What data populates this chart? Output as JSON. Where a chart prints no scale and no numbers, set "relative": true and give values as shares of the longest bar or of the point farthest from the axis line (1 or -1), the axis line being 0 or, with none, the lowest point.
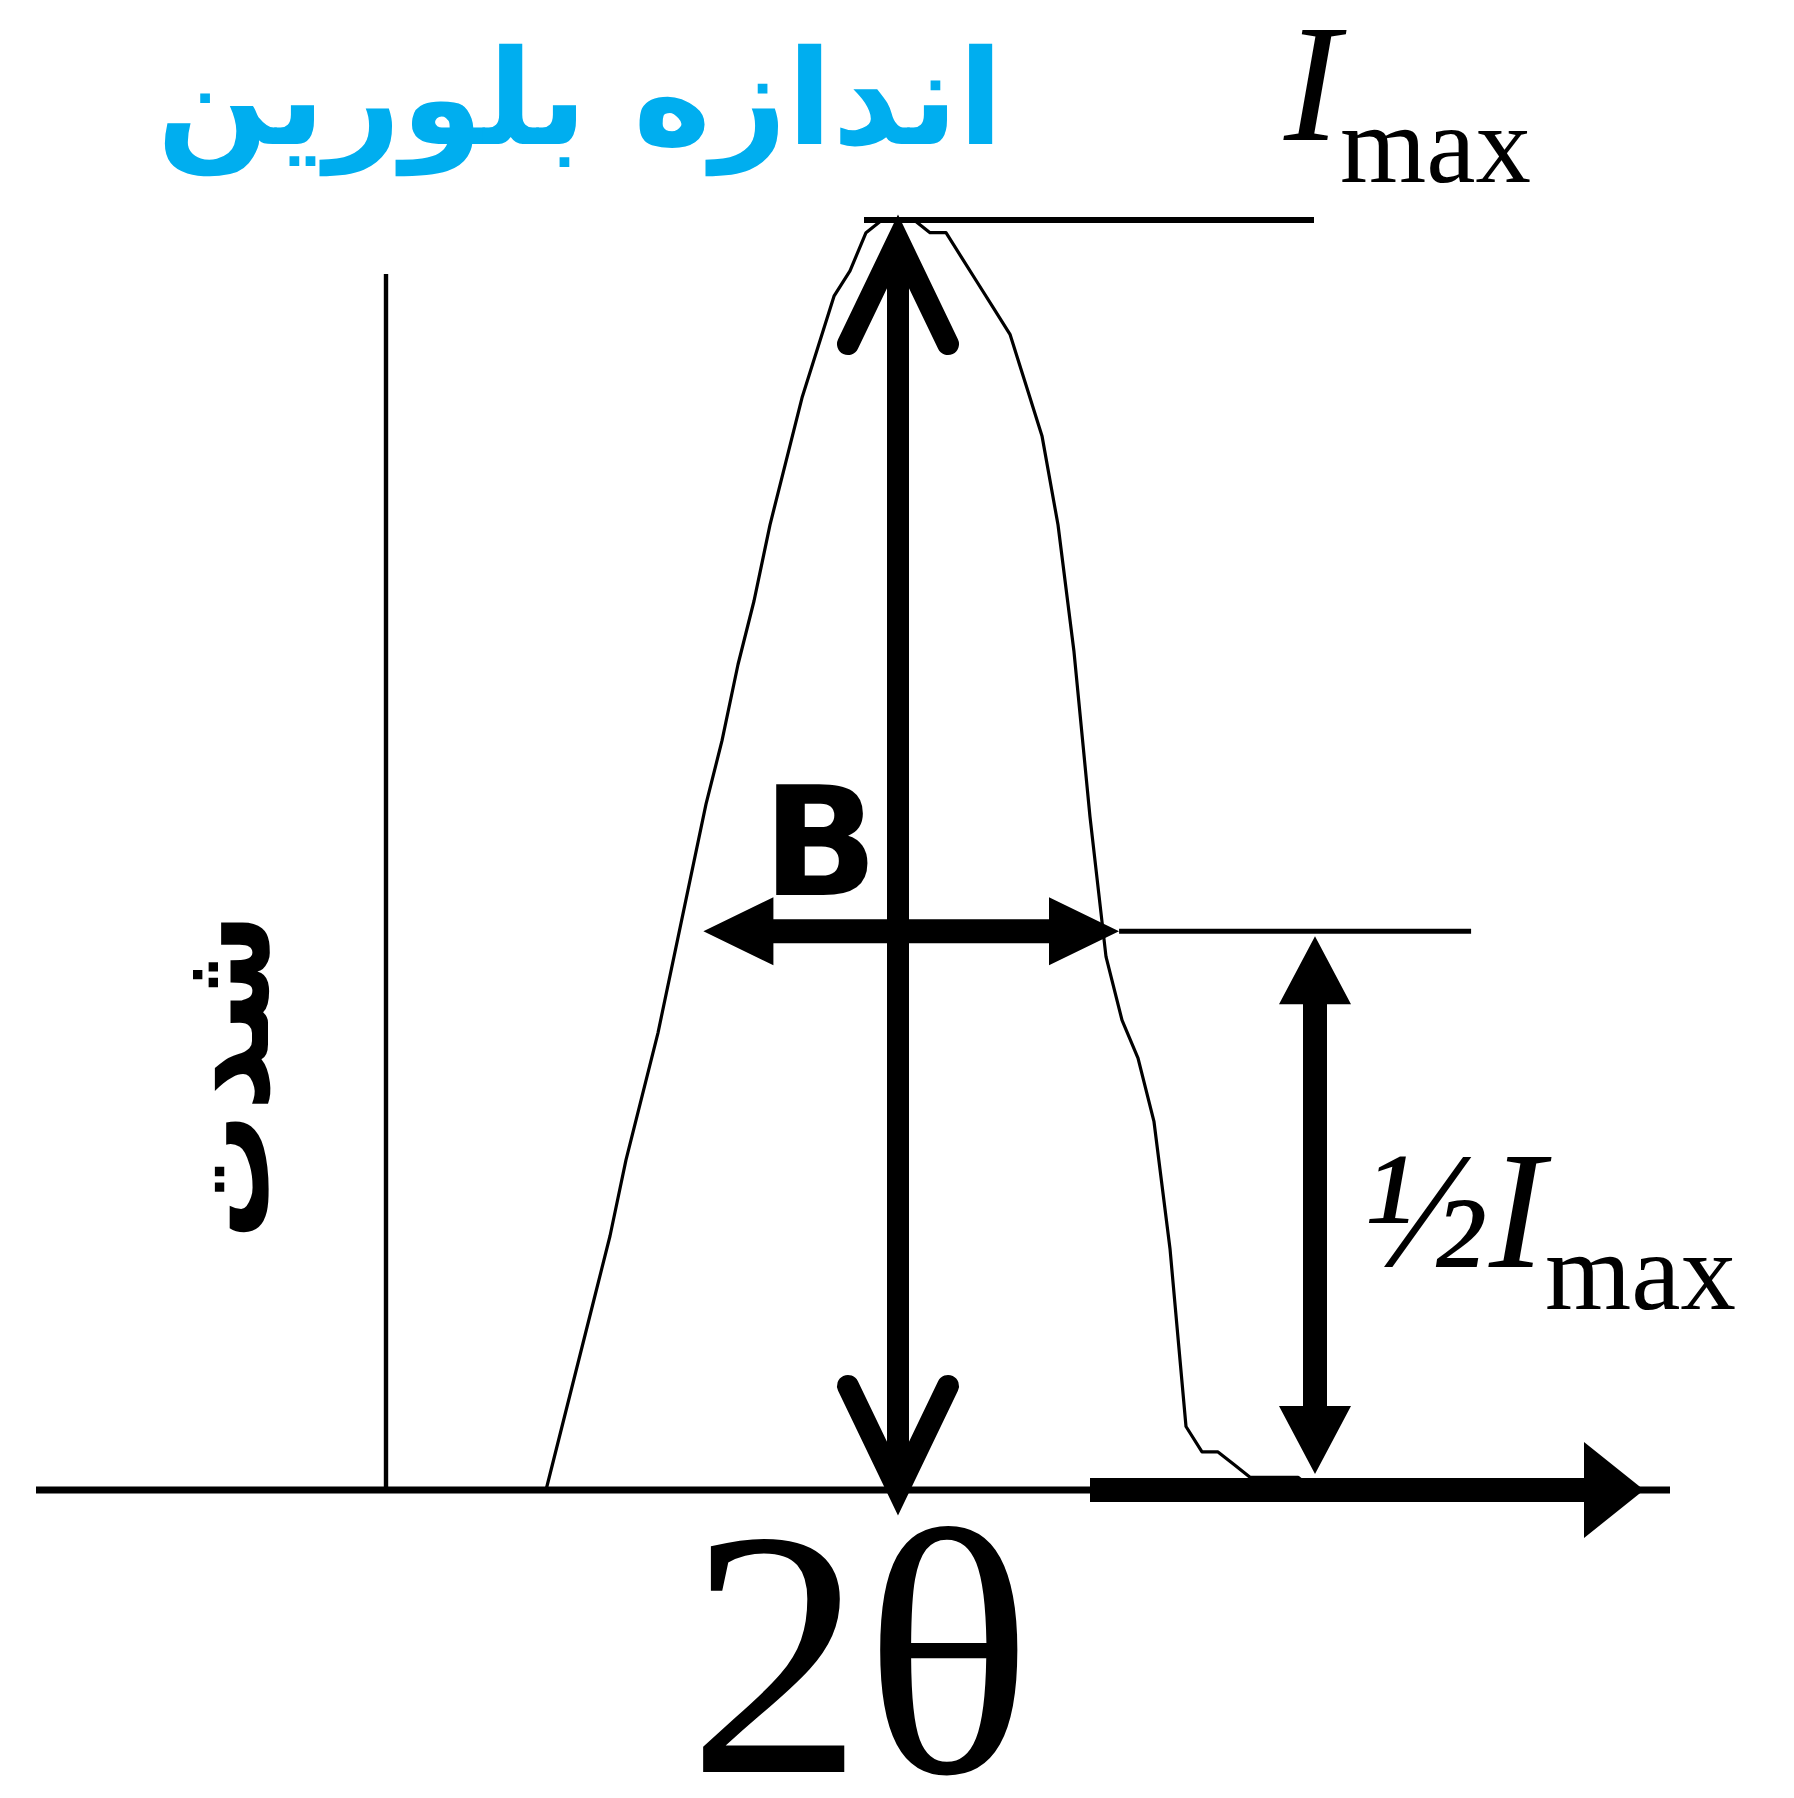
{
  "chart_data": {
    "type": "line",
    "title": "اندازه بلورین",
    "xlabel": "2θ",
    "ylabel": "شدت",
    "relative": true,
    "categories": [
      null,
      null,
      null,
      null,
      null,
      null,
      null,
      null,
      null,
      null,
      null,
      null,
      null,
      null,
      null,
      null,
      null,
      null,
      null,
      null,
      null,
      null,
      null,
      null,
      null,
      null,
      null,
      null,
      null,
      null,
      null,
      null,
      null,
      null,
      null,
      null,
      null,
      null,
      null,
      null,
      null,
      null,
      null,
      null,
      null,
      null,
      null,
      null,
      null
    ],
    "series": [
      {
        "color": "#000000",
        "values": [
          0.0,
          0.05,
          0.1,
          0.15,
          0.2,
          0.26,
          0.31,
          0.36,
          0.42,
          0.48,
          0.54,
          0.59,
          0.65,
          0.7,
          0.76,
          0.81,
          0.86,
          0.9,
          0.94,
          0.96,
          0.99,
          1.0,
          1.0,
          1.0,
          0.99,
          0.99,
          0.97,
          0.95,
          0.93,
          0.91,
          0.87,
          0.83,
          0.76,
          0.66,
          0.53,
          0.42,
          0.37,
          0.34,
          0.29,
          0.19,
          0.05,
          0.03,
          0.03,
          0.02,
          0.01,
          0.01,
          0.01,
          0.01,
          0.0
        ]
      }
    ],
    "ref_lines": [
      {
        "axis": "y",
        "value": 1,
        "label": "I$_{max}$"
      },
      {
        "axis": "y",
        "value": 0.44,
        "label": "½I$_{max}$"
      }
    ],
    "annotations": [
      "B"
    ]
  }
}
